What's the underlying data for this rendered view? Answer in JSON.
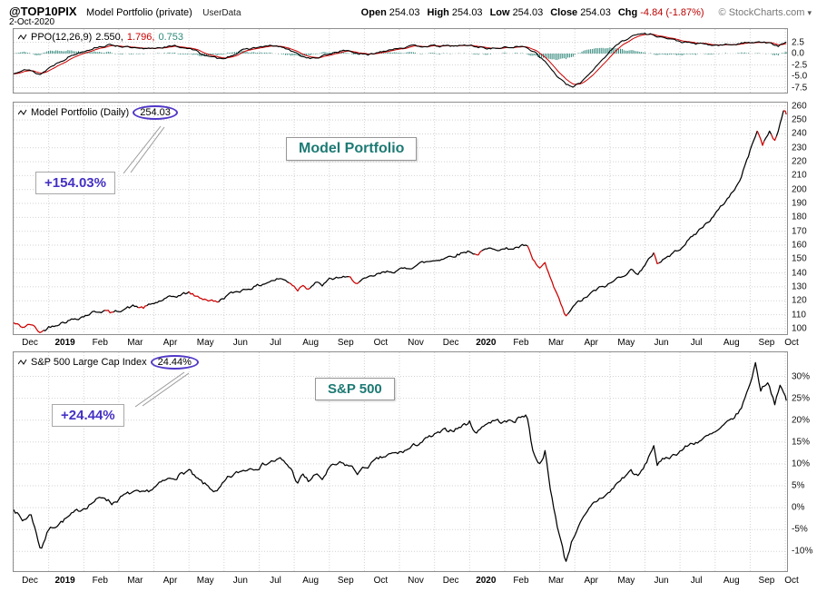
{
  "header": {
    "symbol": "@TOP10PIX",
    "title": "Model Portfolio (private)",
    "source": "UserData",
    "date": "2-Oct-2020",
    "quote": [
      {
        "label": "Open",
        "value": "254.03"
      },
      {
        "label": "High",
        "value": "254.03"
      },
      {
        "label": "Low",
        "value": "254.03"
      },
      {
        "label": "Close",
        "value": "254.03"
      },
      {
        "label": "Chg",
        "value": "-4.84 (-1.87%)",
        "color": "#bb0000"
      }
    ],
    "copyright": "© StockCharts.com",
    "menu_caret": "▾"
  },
  "x_axis": {
    "labels": [
      "Dec",
      "2019",
      "Feb",
      "Mar",
      "Apr",
      "May",
      "Jun",
      "Jul",
      "Aug",
      "Sep",
      "Oct",
      "Nov",
      "Dec",
      "2020",
      "Feb",
      "Mar",
      "Apr",
      "May",
      "Jun",
      "Jul",
      "Aug",
      "Sep",
      "Oct"
    ],
    "bold": [
      "2019",
      "2020"
    ]
  },
  "panels": {
    "ppo": {
      "legend_label": "PPO(12,26,9)",
      "legend_values": [
        {
          "text": "2.550,",
          "color": "#000000"
        },
        {
          "text": "1.796,",
          "color": "#cc0000"
        },
        {
          "text": "0.753",
          "color": "#2e8a7a"
        }
      ],
      "yticks": [
        "2.5",
        "0.0",
        "-2.5",
        "-5.0",
        "-7.5"
      ]
    },
    "main": {
      "legend_label": "Model Portfolio (Daily)",
      "legend_value": "254.03",
      "box_label": "Model Portfolio",
      "annotation": "+154.03%",
      "yticks": [
        "260",
        "250",
        "240",
        "230",
        "220",
        "210",
        "200",
        "190",
        "180",
        "170",
        "160",
        "150",
        "140",
        "130",
        "120",
        "110",
        "100"
      ]
    },
    "sp": {
      "legend_label": "S&P 500 Large Cap Index",
      "legend_value": "24.44%",
      "box_label": "S&P 500",
      "annotation": "+24.44%",
      "yticks": [
        "30%",
        "25%",
        "20%",
        "15%",
        "10%",
        "5%",
        "0%",
        "-5%",
        "-10%"
      ]
    }
  },
  "chart_data": [
    {
      "type": "line",
      "panel": "ppo",
      "title": "PPO(12,26,9) 2.550, 1.796, 0.753",
      "x_unit": "months since Dec-2018 (Dec 2018 = 0, Oct 2 2020 = 22.03)",
      "x_range": [
        0,
        22.05
      ],
      "ylim": [
        -8.6,
        5.4
      ],
      "yticks": [
        2.5,
        0.0,
        -2.5,
        -5.0,
        -7.5
      ],
      "grid": true,
      "line_color": "#000000",
      "signal_color": "#cc0000",
      "histogram_color": "#33887c",
      "series_note": "signal = 9-period EMA of PPO; histogram = PPO - signal",
      "points": [
        [
          0,
          -4.5
        ],
        [
          0.3,
          -3.2
        ],
        [
          0.6,
          -4.2
        ],
        [
          0.77,
          -4.6
        ],
        [
          1,
          -3.2
        ],
        [
          1.3,
          -1.8
        ],
        [
          1.6,
          -0.6
        ],
        [
          2,
          0.6
        ],
        [
          2.4,
          1.5
        ],
        [
          2.8,
          1.9
        ],
        [
          3.1,
          1.6
        ],
        [
          3.4,
          1.2
        ],
        [
          3.7,
          0.9
        ],
        [
          4,
          1.2
        ],
        [
          4.3,
          1.5
        ],
        [
          4.6,
          1.6
        ],
        [
          5,
          1.2
        ],
        [
          5.3,
          0.2
        ],
        [
          5.6,
          -0.8
        ],
        [
          5.9,
          -1.2
        ],
        [
          6.2,
          -0.4
        ],
        [
          6.5,
          0.6
        ],
        [
          6.8,
          1.2
        ],
        [
          7.1,
          1.5
        ],
        [
          7.4,
          1.7
        ],
        [
          7.7,
          1.3
        ],
        [
          8,
          0.2
        ],
        [
          8.3,
          -0.8
        ],
        [
          8.6,
          -1.1
        ],
        [
          8.9,
          -0.4
        ],
        [
          9.2,
          0.4
        ],
        [
          9.5,
          0.7
        ],
        [
          9.8,
          0.1
        ],
        [
          10.1,
          -0.4
        ],
        [
          10.4,
          0.3
        ],
        [
          10.7,
          0.9
        ],
        [
          11,
          1.3
        ],
        [
          11.4,
          1.6
        ],
        [
          11.8,
          1.7
        ],
        [
          12.2,
          1.6
        ],
        [
          12.6,
          1.7
        ],
        [
          13,
          1.8
        ],
        [
          13.3,
          1.4
        ],
        [
          13.6,
          1.1
        ],
        [
          14,
          1.3
        ],
        [
          14.3,
          1.5
        ],
        [
          14.63,
          1.4
        ],
        [
          14.9,
          0.2
        ],
        [
          15.2,
          -2.2
        ],
        [
          15.5,
          -5
        ],
        [
          15.74,
          -6.8
        ],
        [
          15.95,
          -7.4
        ],
        [
          16.15,
          -6.5
        ],
        [
          16.4,
          -4.5
        ],
        [
          16.7,
          -2
        ],
        [
          17,
          0.5
        ],
        [
          17.3,
          2.5
        ],
        [
          17.6,
          3.8
        ],
        [
          17.9,
          4.4
        ],
        [
          18.2,
          4.2
        ],
        [
          18.5,
          3.6
        ],
        [
          18.8,
          3
        ],
        [
          19.1,
          2.5
        ],
        [
          19.4,
          2.2
        ],
        [
          19.7,
          2
        ],
        [
          20,
          1.8
        ],
        [
          20.3,
          1.9
        ],
        [
          20.6,
          2.1
        ],
        [
          20.9,
          2.4
        ],
        [
          21.2,
          2.7
        ],
        [
          21.5,
          2.4
        ],
        [
          21.8,
          1.6
        ],
        [
          22.03,
          2.55
        ]
      ]
    },
    {
      "type": "line",
      "panel": "main",
      "title": "Model Portfolio (Daily)",
      "last_value": 254.03,
      "gain_label": "+154.03%",
      "x_unit": "months since Dec-2018 (Dec 2018 = 0, Oct 2 2020 = 22.03)",
      "x_range": [
        0,
        22.05
      ],
      "ylim": [
        96,
        262.5
      ],
      "yticks": [
        260,
        250,
        240,
        230,
        220,
        210,
        200,
        190,
        180,
        170,
        160,
        150,
        140,
        130,
        120,
        110,
        100
      ],
      "grid": true,
      "line_color": "#000000",
      "down_color": "#cc0000",
      "red_segments_x": [
        [
          0,
          0.85
        ],
        [
          2.6,
          2.85
        ],
        [
          3.55,
          3.78
        ],
        [
          5.0,
          5.85
        ],
        [
          7.85,
          8.45
        ],
        [
          9.55,
          9.85
        ],
        [
          13.15,
          13.35
        ],
        [
          14.63,
          15.78
        ],
        [
          18.26,
          18.42
        ],
        [
          21.2,
          21.38
        ],
        [
          21.6,
          21.75
        ],
        [
          21.97,
          22.03
        ]
      ],
      "points": [
        [
          0,
          104
        ],
        [
          0.25,
          101
        ],
        [
          0.5,
          103
        ],
        [
          0.77,
          97
        ],
        [
          1,
          101
        ],
        [
          1.3,
          104
        ],
        [
          1.6,
          106
        ],
        [
          2,
          109
        ],
        [
          2.3,
          112
        ],
        [
          2.6,
          113
        ],
        [
          2.8,
          111
        ],
        [
          3.1,
          114
        ],
        [
          3.4,
          116
        ],
        [
          3.7,
          115
        ],
        [
          4,
          118
        ],
        [
          4.3,
          121
        ],
        [
          4.6,
          123
        ],
        [
          5,
          126
        ],
        [
          5.2,
          123
        ],
        [
          5.5,
          121
        ],
        [
          5.8,
          119
        ],
        [
          6.1,
          124
        ],
        [
          6.4,
          127
        ],
        [
          6.7,
          129
        ],
        [
          7,
          131
        ],
        [
          7.3,
          134
        ],
        [
          7.6,
          136
        ],
        [
          7.9,
          133
        ],
        [
          8.1,
          128
        ],
        [
          8.25,
          132
        ],
        [
          8.4,
          129
        ],
        [
          8.6,
          133
        ],
        [
          8.8,
          131
        ],
        [
          9,
          135
        ],
        [
          9.3,
          137
        ],
        [
          9.6,
          136
        ],
        [
          9.8,
          133
        ],
        [
          10.1,
          136
        ],
        [
          10.4,
          139
        ],
        [
          10.7,
          141
        ],
        [
          11,
          142
        ],
        [
          11.3,
          144
        ],
        [
          11.6,
          147
        ],
        [
          12,
          149
        ],
        [
          12.3,
          151
        ],
        [
          12.6,
          153
        ],
        [
          13,
          156
        ],
        [
          13.2,
          153
        ],
        [
          13.4,
          156
        ],
        [
          13.7,
          158
        ],
        [
          14,
          157
        ],
        [
          14.3,
          158
        ],
        [
          14.63,
          160
        ],
        [
          14.8,
          149
        ],
        [
          15,
          143
        ],
        [
          15.15,
          147
        ],
        [
          15.3,
          135
        ],
        [
          15.5,
          124
        ],
        [
          15.74,
          108
        ],
        [
          15.9,
          114
        ],
        [
          16.1,
          119
        ],
        [
          16.3,
          122
        ],
        [
          16.5,
          126
        ],
        [
          16.7,
          129
        ],
        [
          17,
          132
        ],
        [
          17.2,
          136
        ],
        [
          17.4,
          139
        ],
        [
          17.6,
          142
        ],
        [
          17.8,
          140
        ],
        [
          18,
          145
        ],
        [
          18.26,
          155
        ],
        [
          18.35,
          147
        ],
        [
          18.6,
          151
        ],
        [
          18.8,
          154
        ],
        [
          19,
          158
        ],
        [
          19.3,
          165
        ],
        [
          19.6,
          172
        ],
        [
          20,
          182
        ],
        [
          20.4,
          195
        ],
        [
          20.7,
          206
        ],
        [
          21,
          228
        ],
        [
          21.2,
          243
        ],
        [
          21.35,
          232
        ],
        [
          21.55,
          242
        ],
        [
          21.7,
          235
        ],
        [
          21.85,
          247
        ],
        [
          21.97,
          259
        ],
        [
          22.03,
          254.03
        ]
      ]
    },
    {
      "type": "line",
      "panel": "sp",
      "title": "S&P 500 Large Cap Index (% change)",
      "last_value": 24.44,
      "gain_label": "+24.44%",
      "x_unit": "months since Dec-2018 (Dec 2018 = 0, Oct 2 2020 = 22.03)",
      "x_range": [
        0,
        22.05
      ],
      "ylim": [
        -14.5,
        35.5
      ],
      "yticks": [
        30,
        25,
        20,
        15,
        10,
        5,
        0,
        -5,
        -10
      ],
      "grid": true,
      "line_color": "#000000",
      "points": [
        [
          0,
          0
        ],
        [
          0.25,
          -3
        ],
        [
          0.5,
          -1.5
        ],
        [
          0.77,
          -9.5
        ],
        [
          1,
          -5
        ],
        [
          1.3,
          -3.5
        ],
        [
          1.6,
          -2
        ],
        [
          2,
          0
        ],
        [
          2.3,
          1.5
        ],
        [
          2.6,
          2.5
        ],
        [
          2.8,
          1
        ],
        [
          3.1,
          2.5
        ],
        [
          3.4,
          3.5
        ],
        [
          3.7,
          3
        ],
        [
          4,
          4.5
        ],
        [
          4.3,
          6
        ],
        [
          4.6,
          7
        ],
        [
          5,
          8.5
        ],
        [
          5.2,
          6.5
        ],
        [
          5.5,
          5
        ],
        [
          5.8,
          3.5
        ],
        [
          6.1,
          6.5
        ],
        [
          6.4,
          8
        ],
        [
          6.7,
          9
        ],
        [
          7,
          9.5
        ],
        [
          7.3,
          10.5
        ],
        [
          7.6,
          11
        ],
        [
          7.9,
          9
        ],
        [
          8.1,
          5.5
        ],
        [
          8.25,
          7.5
        ],
        [
          8.4,
          6
        ],
        [
          8.6,
          7.5
        ],
        [
          8.8,
          6.5
        ],
        [
          9,
          9
        ],
        [
          9.3,
          10
        ],
        [
          9.6,
          9.5
        ],
        [
          9.8,
          8
        ],
        [
          10.1,
          9.5
        ],
        [
          10.4,
          11
        ],
        [
          10.7,
          12
        ],
        [
          11,
          12.5
        ],
        [
          11.3,
          13.5
        ],
        [
          11.6,
          15
        ],
        [
          12,
          16.5
        ],
        [
          12.3,
          17.5
        ],
        [
          12.6,
          18
        ],
        [
          13,
          19.5
        ],
        [
          13.2,
          17
        ],
        [
          13.4,
          19
        ],
        [
          13.7,
          20
        ],
        [
          14,
          19.5
        ],
        [
          14.3,
          20
        ],
        [
          14.63,
          21.5
        ],
        [
          14.8,
          13
        ],
        [
          15,
          10
        ],
        [
          15.15,
          13
        ],
        [
          15.3,
          4
        ],
        [
          15.5,
          -4
        ],
        [
          15.74,
          -12.5
        ],
        [
          15.9,
          -8
        ],
        [
          16.1,
          -4
        ],
        [
          16.3,
          -2
        ],
        [
          16.5,
          0.5
        ],
        [
          16.7,
          2
        ],
        [
          17,
          3.5
        ],
        [
          17.2,
          5.5
        ],
        [
          17.4,
          7
        ],
        [
          17.6,
          8.5
        ],
        [
          17.8,
          7
        ],
        [
          18,
          9.5
        ],
        [
          18.26,
          14.5
        ],
        [
          18.35,
          9.5
        ],
        [
          18.6,
          11.5
        ],
        [
          18.8,
          12
        ],
        [
          19,
          13
        ],
        [
          19.3,
          14.5
        ],
        [
          19.6,
          15.5
        ],
        [
          20,
          17
        ],
        [
          20.4,
          19.5
        ],
        [
          20.7,
          22
        ],
        [
          20.9,
          26
        ],
        [
          21.05,
          30
        ],
        [
          21.15,
          33
        ],
        [
          21.3,
          27
        ],
        [
          21.5,
          29
        ],
        [
          21.7,
          24
        ],
        [
          21.85,
          27.5
        ],
        [
          21.97,
          26
        ],
        [
          22.03,
          24.44
        ]
      ]
    }
  ]
}
